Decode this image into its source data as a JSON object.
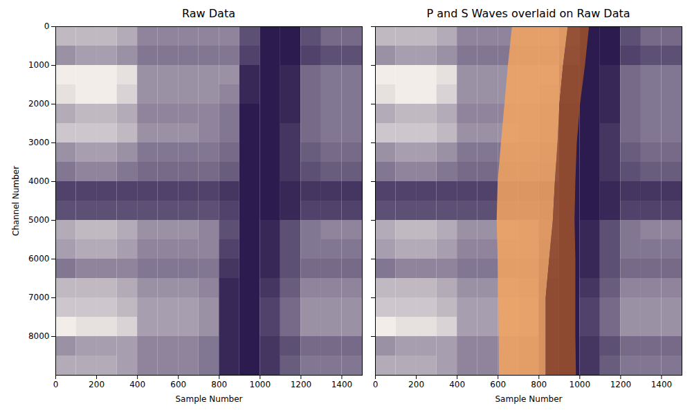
{
  "chart_data": [
    {
      "type": "heatmap",
      "title": "Raw Data",
      "xlabel": "Sample Number",
      "ylabel": "Channel Number",
      "xlim": [
        0,
        1500
      ],
      "ylim": [
        9000,
        0
      ],
      "xticks": [
        0,
        200,
        400,
        600,
        800,
        1000,
        1200,
        1400
      ],
      "yticks": [
        0,
        1000,
        2000,
        3000,
        4000,
        5000,
        6000,
        7000,
        8000
      ],
      "x_bins": [
        0,
        100,
        200,
        300,
        400,
        500,
        600,
        700,
        800,
        900,
        1000,
        1100,
        1200,
        1300,
        1400,
        1500
      ],
      "channel_bins": [
        0,
        500,
        1000,
        1500,
        2000,
        2500,
        3000,
        3500,
        4000,
        4500,
        5000,
        5500,
        6000,
        6500,
        7000,
        7500,
        8000,
        8500,
        9000
      ],
      "cells": [
        [
          0.3,
          0.3,
          0.3,
          0.35,
          0.5,
          0.5,
          0.5,
          0.5,
          0.5,
          0.7,
          0.9,
          0.9,
          0.7,
          0.6,
          0.6
        ],
        [
          0.45,
          0.4,
          0.4,
          0.45,
          0.55,
          0.55,
          0.55,
          0.55,
          0.55,
          0.75,
          0.9,
          0.9,
          0.75,
          0.7,
          0.7
        ],
        [
          0.1,
          0.1,
          0.1,
          0.15,
          0.45,
          0.45,
          0.45,
          0.45,
          0.45,
          0.85,
          0.9,
          0.85,
          0.6,
          0.55,
          0.55
        ],
        [
          0.15,
          0.1,
          0.1,
          0.2,
          0.45,
          0.45,
          0.45,
          0.45,
          0.5,
          0.85,
          0.9,
          0.85,
          0.6,
          0.55,
          0.55
        ],
        [
          0.35,
          0.3,
          0.3,
          0.35,
          0.5,
          0.5,
          0.5,
          0.5,
          0.55,
          0.9,
          0.9,
          0.85,
          0.6,
          0.55,
          0.55
        ],
        [
          0.25,
          0.25,
          0.25,
          0.3,
          0.45,
          0.45,
          0.45,
          0.5,
          0.55,
          0.9,
          0.9,
          0.8,
          0.6,
          0.55,
          0.55
        ],
        [
          0.45,
          0.4,
          0.4,
          0.45,
          0.55,
          0.55,
          0.55,
          0.55,
          0.6,
          0.9,
          0.9,
          0.8,
          0.65,
          0.6,
          0.6
        ],
        [
          0.55,
          0.5,
          0.5,
          0.55,
          0.6,
          0.6,
          0.6,
          0.6,
          0.65,
          0.9,
          0.9,
          0.8,
          0.7,
          0.65,
          0.65
        ],
        [
          0.75,
          0.75,
          0.75,
          0.75,
          0.75,
          0.75,
          0.75,
          0.75,
          0.8,
          0.9,
          0.9,
          0.85,
          0.8,
          0.8,
          0.8
        ],
        [
          0.7,
          0.7,
          0.7,
          0.7,
          0.7,
          0.7,
          0.7,
          0.7,
          0.75,
          0.9,
          0.9,
          0.85,
          0.75,
          0.75,
          0.75
        ],
        [
          0.35,
          0.3,
          0.3,
          0.35,
          0.45,
          0.45,
          0.45,
          0.5,
          0.7,
          0.9,
          0.85,
          0.7,
          0.55,
          0.5,
          0.5
        ],
        [
          0.4,
          0.35,
          0.35,
          0.4,
          0.5,
          0.5,
          0.5,
          0.5,
          0.75,
          0.9,
          0.85,
          0.7,
          0.55,
          0.55,
          0.55
        ],
        [
          0.55,
          0.5,
          0.5,
          0.5,
          0.55,
          0.55,
          0.55,
          0.55,
          0.8,
          0.9,
          0.85,
          0.7,
          0.6,
          0.6,
          0.6
        ],
        [
          0.3,
          0.3,
          0.3,
          0.35,
          0.45,
          0.45,
          0.45,
          0.5,
          0.85,
          0.9,
          0.8,
          0.65,
          0.5,
          0.5,
          0.5
        ],
        [
          0.25,
          0.25,
          0.25,
          0.3,
          0.4,
          0.4,
          0.4,
          0.45,
          0.85,
          0.9,
          0.75,
          0.6,
          0.45,
          0.45,
          0.45
        ],
        [
          0.1,
          0.15,
          0.15,
          0.2,
          0.4,
          0.4,
          0.4,
          0.45,
          0.85,
          0.9,
          0.75,
          0.6,
          0.45,
          0.45,
          0.45
        ],
        [
          0.45,
          0.4,
          0.4,
          0.4,
          0.5,
          0.5,
          0.5,
          0.55,
          0.85,
          0.9,
          0.8,
          0.7,
          0.6,
          0.6,
          0.6
        ],
        [
          0.35,
          0.35,
          0.35,
          0.4,
          0.5,
          0.5,
          0.5,
          0.55,
          0.85,
          0.9,
          0.8,
          0.65,
          0.55,
          0.55,
          0.55
        ]
      ]
    },
    {
      "type": "heatmap",
      "title": "P and S Waves overlaid on Raw Data",
      "xlabel": "Sample Number",
      "xlim": [
        0,
        1500
      ],
      "ylim": [
        9000,
        0
      ],
      "xticks": [
        0,
        200,
        400,
        600,
        800,
        1000,
        1200,
        1400
      ],
      "yticks": [
        0,
        1000,
        2000,
        3000,
        4000,
        5000,
        6000,
        7000,
        8000
      ],
      "tick_labels": "x",
      "x_bins": [
        0,
        100,
        200,
        300,
        400,
        500,
        600,
        700,
        800,
        900,
        1000,
        1100,
        1200,
        1300,
        1400,
        1500
      ],
      "channel_bins": [
        0,
        500,
        1000,
        1500,
        2000,
        2500,
        3000,
        3500,
        4000,
        4500,
        5000,
        5500,
        6000,
        6500,
        7000,
        7500,
        8000,
        8500,
        9000
      ],
      "cells": [
        [
          0.3,
          0.3,
          0.3,
          0.35,
          0.5,
          0.5,
          0.5,
          0.5,
          0.5,
          0.7,
          0.9,
          0.9,
          0.7,
          0.6,
          0.6
        ],
        [
          0.45,
          0.4,
          0.4,
          0.45,
          0.55,
          0.55,
          0.55,
          0.55,
          0.55,
          0.75,
          0.9,
          0.9,
          0.75,
          0.7,
          0.7
        ],
        [
          0.1,
          0.1,
          0.1,
          0.15,
          0.45,
          0.45,
          0.45,
          0.45,
          0.45,
          0.85,
          0.9,
          0.85,
          0.6,
          0.55,
          0.55
        ],
        [
          0.15,
          0.1,
          0.1,
          0.2,
          0.45,
          0.45,
          0.45,
          0.45,
          0.5,
          0.85,
          0.9,
          0.85,
          0.6,
          0.55,
          0.55
        ],
        [
          0.35,
          0.3,
          0.3,
          0.35,
          0.5,
          0.5,
          0.5,
          0.5,
          0.55,
          0.9,
          0.9,
          0.85,
          0.6,
          0.55,
          0.55
        ],
        [
          0.25,
          0.25,
          0.25,
          0.3,
          0.45,
          0.45,
          0.45,
          0.5,
          0.55,
          0.9,
          0.9,
          0.8,
          0.6,
          0.55,
          0.55
        ],
        [
          0.45,
          0.4,
          0.4,
          0.45,
          0.55,
          0.55,
          0.55,
          0.55,
          0.6,
          0.9,
          0.9,
          0.8,
          0.65,
          0.6,
          0.6
        ],
        [
          0.55,
          0.5,
          0.5,
          0.55,
          0.6,
          0.6,
          0.6,
          0.6,
          0.65,
          0.9,
          0.9,
          0.8,
          0.7,
          0.65,
          0.65
        ],
        [
          0.75,
          0.75,
          0.75,
          0.75,
          0.75,
          0.75,
          0.75,
          0.75,
          0.8,
          0.9,
          0.9,
          0.85,
          0.8,
          0.8,
          0.8
        ],
        [
          0.7,
          0.7,
          0.7,
          0.7,
          0.7,
          0.7,
          0.7,
          0.7,
          0.75,
          0.9,
          0.9,
          0.85,
          0.75,
          0.75,
          0.75
        ],
        [
          0.35,
          0.3,
          0.3,
          0.35,
          0.45,
          0.45,
          0.45,
          0.5,
          0.7,
          0.9,
          0.85,
          0.7,
          0.55,
          0.5,
          0.5
        ],
        [
          0.4,
          0.35,
          0.35,
          0.4,
          0.5,
          0.5,
          0.5,
          0.5,
          0.75,
          0.9,
          0.85,
          0.7,
          0.55,
          0.55,
          0.55
        ],
        [
          0.55,
          0.5,
          0.5,
          0.5,
          0.55,
          0.55,
          0.55,
          0.55,
          0.8,
          0.9,
          0.85,
          0.7,
          0.6,
          0.6,
          0.6
        ],
        [
          0.3,
          0.3,
          0.3,
          0.35,
          0.45,
          0.45,
          0.45,
          0.5,
          0.85,
          0.9,
          0.8,
          0.65,
          0.5,
          0.5,
          0.5
        ],
        [
          0.25,
          0.25,
          0.25,
          0.3,
          0.4,
          0.4,
          0.4,
          0.45,
          0.85,
          0.9,
          0.75,
          0.6,
          0.45,
          0.45,
          0.45
        ],
        [
          0.1,
          0.15,
          0.15,
          0.2,
          0.4,
          0.4,
          0.4,
          0.45,
          0.85,
          0.9,
          0.75,
          0.6,
          0.45,
          0.45,
          0.45
        ],
        [
          0.45,
          0.4,
          0.4,
          0.4,
          0.5,
          0.5,
          0.5,
          0.55,
          0.85,
          0.9,
          0.8,
          0.7,
          0.6,
          0.6,
          0.6
        ],
        [
          0.35,
          0.35,
          0.35,
          0.4,
          0.5,
          0.5,
          0.5,
          0.55,
          0.85,
          0.9,
          0.8,
          0.65,
          0.55,
          0.55,
          0.55
        ]
      ],
      "overlay": {
        "channels": [
          0,
          1000,
          2000,
          3000,
          4000,
          5000,
          6000,
          7000,
          8000,
          9000
        ],
        "p_wave_start": [
          670,
          650,
          633,
          616,
          600,
          595,
          600,
          603,
          605,
          606
        ],
        "s_wave_start": [
          943,
          920,
          902,
          893,
          880,
          870,
          852,
          835,
          835,
          835
        ],
        "s_wave_end": [
          1047,
          1027,
          1003,
          987,
          980,
          976,
          980,
          980,
          980,
          983
        ]
      },
      "colors": [
        "#f4a460",
        "#a0522d"
      ]
    }
  ]
}
